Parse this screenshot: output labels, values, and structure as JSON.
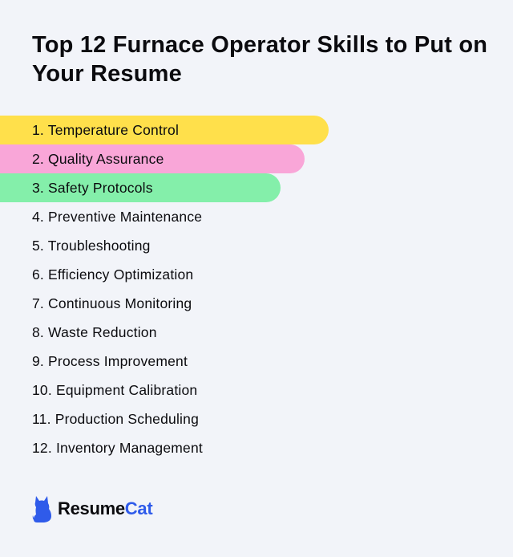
{
  "title": "Top 12 Furnace Operator Skills to Put on Your Resume",
  "skills": [
    {
      "label": "1. Temperature Control",
      "highlight": "#ffe04b",
      "bar_fraction": 0.64
    },
    {
      "label": "2. Quality Assurance",
      "highlight": "#f9a6d8",
      "bar_fraction": 0.594
    },
    {
      "label": "3. Safety Protocols",
      "highlight": "#84efaa",
      "bar_fraction": 0.547
    },
    {
      "label": "4. Preventive Maintenance"
    },
    {
      "label": "5. Troubleshooting"
    },
    {
      "label": "6. Efficiency Optimization"
    },
    {
      "label": "7. Continuous Monitoring"
    },
    {
      "label": "8. Waste Reduction"
    },
    {
      "label": "9. Process Improvement"
    },
    {
      "label": "10. Equipment Calibration"
    },
    {
      "label": "11. Production Scheduling"
    },
    {
      "label": "12. Inventory Management"
    }
  ],
  "logo": {
    "part1": "Resume",
    "part2": "Cat",
    "icon": "cat-icon",
    "color1": "#0b0b0f",
    "color2": "#2f5bea"
  }
}
